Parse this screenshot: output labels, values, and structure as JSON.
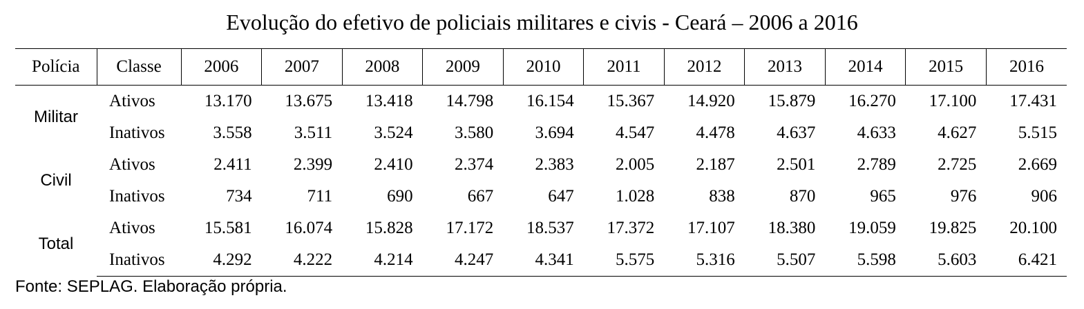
{
  "title": "Evolução do efetivo de policiais militares e civis - Ceará – 2006 a 2016",
  "header": {
    "policia": "Polícia",
    "classe": "Classe",
    "years": [
      "2006",
      "2007",
      "2008",
      "2009",
      "2010",
      "2011",
      "2012",
      "2013",
      "2014",
      "2015",
      "2016"
    ]
  },
  "groups": [
    {
      "name": "Militar",
      "rows": [
        {
          "classe": "Ativos",
          "values": [
            "13.170",
            "13.675",
            "13.418",
            "14.798",
            "16.154",
            "15.367",
            "14.920",
            "15.879",
            "16.270",
            "17.100",
            "17.431"
          ]
        },
        {
          "classe": "Inativos",
          "values": [
            "3.558",
            "3.511",
            "3.524",
            "3.580",
            "3.694",
            "4.547",
            "4.478",
            "4.637",
            "4.633",
            "4.627",
            "5.515"
          ]
        }
      ]
    },
    {
      "name": "Civil",
      "rows": [
        {
          "classe": "Ativos",
          "values": [
            "2.411",
            "2.399",
            "2.410",
            "2.374",
            "2.383",
            "2.005",
            "2.187",
            "2.501",
            "2.789",
            "2.725",
            "2.669"
          ]
        },
        {
          "classe": "Inativos",
          "values": [
            "734",
            "711",
            "690",
            "667",
            "647",
            "1.028",
            "838",
            "870",
            "965",
            "976",
            "906"
          ]
        }
      ]
    },
    {
      "name": "Total",
      "rows": [
        {
          "classe": "Ativos",
          "values": [
            "15.581",
            "16.074",
            "15.828",
            "17.172",
            "18.537",
            "17.372",
            "17.107",
            "18.380",
            "19.059",
            "19.825",
            "20.100"
          ]
        },
        {
          "classe": "Inativos",
          "values": [
            "4.292",
            "4.222",
            "4.214",
            "4.247",
            "4.341",
            "5.575",
            "5.316",
            "5.507",
            "5.598",
            "5.603",
            "6.421"
          ]
        }
      ]
    }
  ],
  "source": "Fonte: SEPLAG. Elaboração própria."
}
